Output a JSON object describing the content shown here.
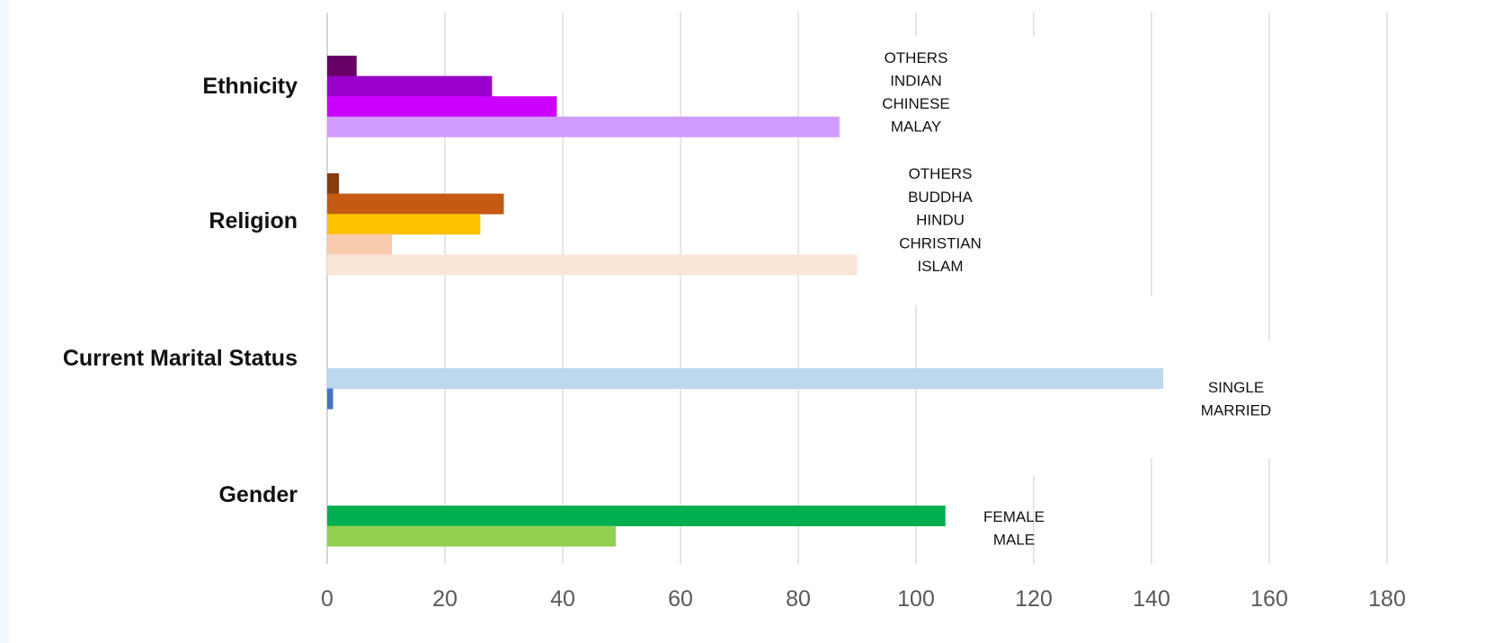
{
  "chart_data": {
    "type": "bar",
    "orientation": "horizontal",
    "title": "",
    "xlabel": "",
    "ylabel": "",
    "xlim": [
      0,
      180
    ],
    "x_ticks": [
      0,
      20,
      40,
      60,
      80,
      100,
      120,
      140,
      160,
      180
    ],
    "grid": true,
    "legend": "inline-right-of-each-group",
    "groups": [
      {
        "name": "Ethnicity",
        "series": [
          {
            "label": "OTHERS",
            "value": 5,
            "color": "#660066"
          },
          {
            "label": "INDIAN",
            "value": 28,
            "color": "#9900cc"
          },
          {
            "label": "CHINESE",
            "value": 39,
            "color": "#cc00ff"
          },
          {
            "label": "MALAY",
            "value": 87,
            "color": "#d29bff"
          }
        ]
      },
      {
        "name": "Religion",
        "series": [
          {
            "label": "OTHERS",
            "value": 2,
            "color": "#843c0c"
          },
          {
            "label": "BUDDHA",
            "value": 30,
            "color": "#c55a11"
          },
          {
            "label": "HINDU",
            "value": 26,
            "color": "#ffc000"
          },
          {
            "label": "CHRISTIAN",
            "value": 11,
            "color": "#f8cbad"
          },
          {
            "label": "ISLAM",
            "value": 90,
            "color": "#fbe5d6"
          }
        ]
      },
      {
        "name": "Current Marital Status",
        "series": [
          {
            "label": "SINGLE",
            "value": 142,
            "color": "#bdd7ee"
          },
          {
            "label": "MARRIED",
            "value": 1,
            "color": "#4472c4"
          }
        ]
      },
      {
        "name": "Gender",
        "series": [
          {
            "label": "FEMALE",
            "value": 105,
            "color": "#00b050"
          },
          {
            "label": "MALE",
            "value": 49,
            "color": "#92d050"
          }
        ]
      }
    ]
  }
}
